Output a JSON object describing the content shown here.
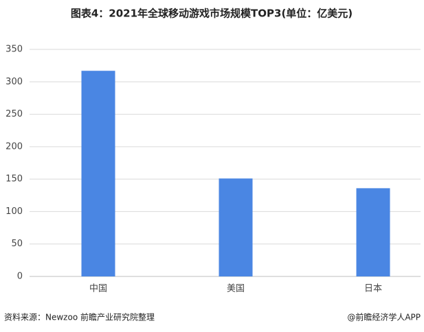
{
  "chart_data": {
    "type": "bar",
    "title": "图表4：2021年全球移动游戏市场规模TOP3(单位：亿美元)",
    "categories": [
      "中国",
      "美国",
      "日本"
    ],
    "values": [
      317,
      151,
      136
    ],
    "color": "#4a86e3",
    "ylim": [
      0,
      350
    ],
    "yticks": [
      0,
      50,
      100,
      150,
      200,
      250,
      300,
      350
    ],
    "grid": true,
    "source": "资料来源：Newzoo 前瞻产业研究院整理",
    "credit": "@前瞻经济学人APP"
  }
}
